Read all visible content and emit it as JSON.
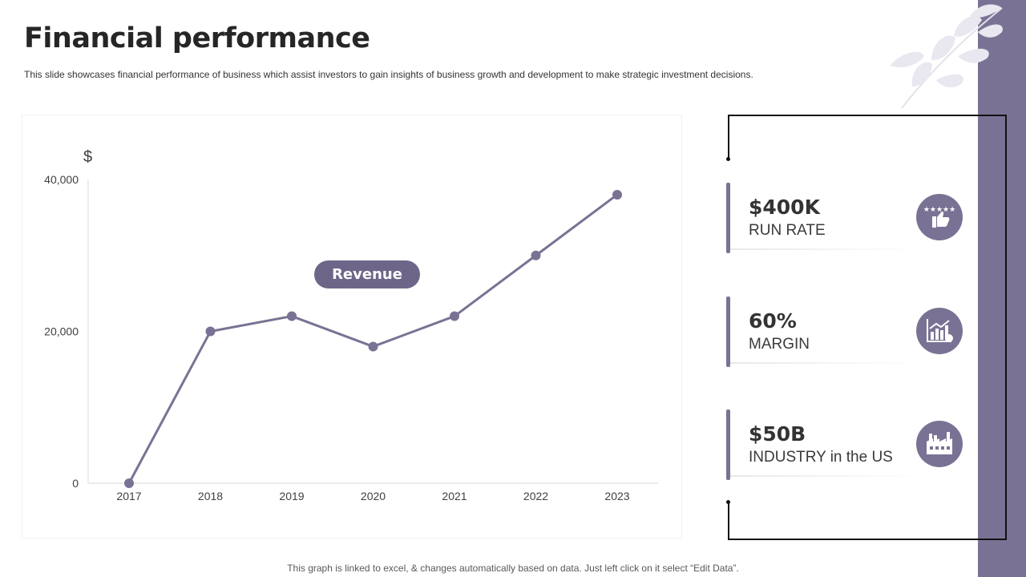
{
  "header": {
    "title": "Financial performance",
    "subtitle": "This slide showcases financial performance of business which assist investors to gain insights of business growth and development to make strategic investment decisions."
  },
  "chart_data": {
    "type": "line",
    "title": "",
    "unit_label": "$",
    "xlabel": "",
    "ylabel": "$",
    "x": [
      "2017",
      "2018",
      "2019",
      "2020",
      "2021",
      "2022",
      "2023"
    ],
    "series": [
      {
        "name": "Revenue",
        "values": [
          0,
          20000,
          22000,
          18000,
          22000,
          30000,
          38000
        ]
      }
    ],
    "y_ticks": [
      "0",
      "20,000",
      "40,000"
    ],
    "ylim": [
      0,
      40000
    ],
    "grid": false,
    "legend_position": "center",
    "series_color": "#7a7294"
  },
  "kpis": [
    {
      "value": "$400K",
      "label": "RUN RATE",
      "icon": "thumbs-up-stars-icon"
    },
    {
      "value": "60%",
      "label": "MARGIN",
      "icon": "growth-chart-icon"
    },
    {
      "value": "$50B",
      "label": "INDUSTRY in the US",
      "icon": "factory-icon"
    }
  ],
  "footer": {
    "note": "This graph is linked to excel, & changes automatically based on data. Just left click on it select “Edit Data”."
  },
  "colors": {
    "accent": "#7a7294",
    "pill": "#6e6688",
    "text": "#262626"
  }
}
